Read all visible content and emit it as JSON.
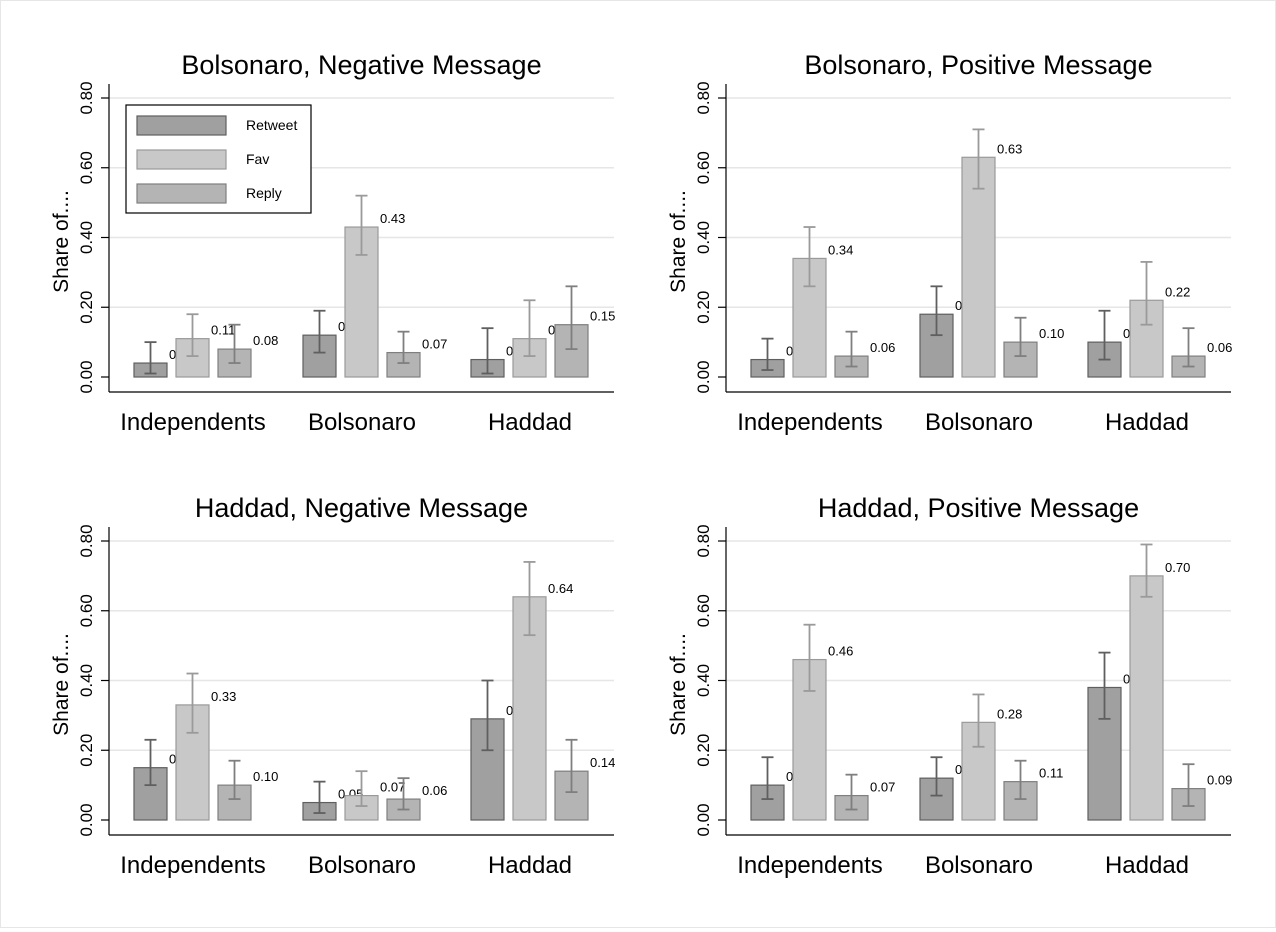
{
  "legend": {
    "entries": [
      {
        "name": "Retweet",
        "color": "#a0a0a0"
      },
      {
        "name": "Fav",
        "color": "#c8c8c8"
      },
      {
        "name": "Reply",
        "color": "#b4b4b4"
      }
    ]
  },
  "colors": {
    "retweet_fill": "#a0a0a0",
    "retweet_stroke": "#5f5f5f",
    "fav_fill": "#c8c8c8",
    "fav_stroke": "#9a9a9a",
    "reply_fill": "#b4b4b4",
    "reply_stroke": "#7f7f7f",
    "grid": "#e6e6e6",
    "axis": "#000000"
  },
  "chart_data": [
    {
      "type": "bar",
      "title": "Bolsonaro, Negative Message",
      "ylabel": "Share of....",
      "xlabel": "",
      "ylim": [
        0,
        0.8
      ],
      "yticks": [
        "0.00",
        "0.20",
        "0.40",
        "0.60",
        "0.80"
      ],
      "grid": true,
      "legend_placement": "top-left",
      "categories": [
        "Independents",
        "Bolsonaro",
        "Haddad"
      ],
      "series": [
        {
          "name": "Retweet",
          "values": [
            0.04,
            0.12,
            0.05
          ],
          "labels": [
            "0.04",
            "0.12",
            "0.05"
          ],
          "ci_low": [
            0.01,
            0.07,
            0.01
          ],
          "ci_high": [
            0.1,
            0.19,
            0.14
          ]
        },
        {
          "name": "Fav",
          "values": [
            0.11,
            0.43,
            0.11
          ],
          "labels": [
            "0.11",
            "0.43",
            "0.11"
          ],
          "ci_low": [
            0.06,
            0.35,
            0.06
          ],
          "ci_high": [
            0.18,
            0.52,
            0.22
          ]
        },
        {
          "name": "Reply",
          "values": [
            0.08,
            0.07,
            0.15
          ],
          "labels": [
            "0.08",
            "0.07",
            "0.15"
          ],
          "ci_low": [
            0.04,
            0.04,
            0.08
          ],
          "ci_high": [
            0.15,
            0.13,
            0.26
          ]
        }
      ]
    },
    {
      "type": "bar",
      "title": "Bolsonaro, Positive Message",
      "ylabel": "Share of....",
      "xlabel": "",
      "ylim": [
        0,
        0.8
      ],
      "yticks": [
        "0.00",
        "0.20",
        "0.40",
        "0.60",
        "0.80"
      ],
      "grid": true,
      "categories": [
        "Independents",
        "Bolsonaro",
        "Haddad"
      ],
      "series": [
        {
          "name": "Retweet",
          "values": [
            0.05,
            0.18,
            0.1
          ],
          "labels": [
            "0.05",
            "0.18",
            "0.10"
          ],
          "ci_low": [
            0.02,
            0.12,
            0.05
          ],
          "ci_high": [
            0.11,
            0.26,
            0.19
          ]
        },
        {
          "name": "Fav",
          "values": [
            0.34,
            0.63,
            0.22
          ],
          "labels": [
            "0.34",
            "0.63",
            "0.22"
          ],
          "ci_low": [
            0.26,
            0.54,
            0.15
          ],
          "ci_high": [
            0.43,
            0.71,
            0.33
          ]
        },
        {
          "name": "Reply",
          "values": [
            0.06,
            0.1,
            0.06
          ],
          "labels": [
            "0.06",
            "0.10",
            "0.06"
          ],
          "ci_low": [
            0.03,
            0.06,
            0.03
          ],
          "ci_high": [
            0.13,
            0.17,
            0.14
          ]
        }
      ]
    },
    {
      "type": "bar",
      "title": "Haddad, Negative Message",
      "ylabel": "Share of....",
      "xlabel": "",
      "ylim": [
        0,
        0.8
      ],
      "yticks": [
        "0.00",
        "0.20",
        "0.40",
        "0.60",
        "0.80"
      ],
      "grid": true,
      "categories": [
        "Independents",
        "Bolsonaro",
        "Haddad"
      ],
      "series": [
        {
          "name": "Retweet",
          "values": [
            0.15,
            0.05,
            0.29
          ],
          "labels": [
            "0.15",
            "0.05",
            "0.29"
          ],
          "ci_low": [
            0.1,
            0.02,
            0.2
          ],
          "ci_high": [
            0.23,
            0.11,
            0.4
          ]
        },
        {
          "name": "Fav",
          "values": [
            0.33,
            0.07,
            0.64
          ],
          "labels": [
            "0.33",
            "0.07",
            "0.64"
          ],
          "ci_low": [
            0.25,
            0.04,
            0.53
          ],
          "ci_high": [
            0.42,
            0.14,
            0.74
          ]
        },
        {
          "name": "Reply",
          "values": [
            0.1,
            0.06,
            0.14
          ],
          "labels": [
            "0.10",
            "0.06",
            "0.14"
          ],
          "ci_low": [
            0.06,
            0.03,
            0.08
          ],
          "ci_high": [
            0.17,
            0.12,
            0.23
          ]
        }
      ]
    },
    {
      "type": "bar",
      "title": "Haddad, Positive Message",
      "ylabel": "Share of....",
      "xlabel": "",
      "ylim": [
        0,
        0.8
      ],
      "yticks": [
        "0.00",
        "0.20",
        "0.40",
        "0.60",
        "0.80"
      ],
      "grid": true,
      "categories": [
        "Independents",
        "Bolsonaro",
        "Haddad"
      ],
      "series": [
        {
          "name": "Retweet",
          "values": [
            0.1,
            0.12,
            0.38
          ],
          "labels": [
            "0.10",
            "0.12",
            "0.38"
          ],
          "ci_low": [
            0.06,
            0.07,
            0.29
          ],
          "ci_high": [
            0.18,
            0.18,
            0.48
          ]
        },
        {
          "name": "Fav",
          "values": [
            0.46,
            0.28,
            0.7
          ],
          "labels": [
            "0.46",
            "0.28",
            "0.70"
          ],
          "ci_low": [
            0.37,
            0.21,
            0.64
          ],
          "ci_high": [
            0.56,
            0.36,
            0.79
          ]
        },
        {
          "name": "Reply",
          "values": [
            0.07,
            0.11,
            0.09
          ],
          "labels": [
            "0.07",
            "0.11",
            "0.09"
          ],
          "ci_low": [
            0.03,
            0.06,
            0.04
          ],
          "ci_high": [
            0.13,
            0.17,
            0.16
          ]
        }
      ]
    }
  ]
}
